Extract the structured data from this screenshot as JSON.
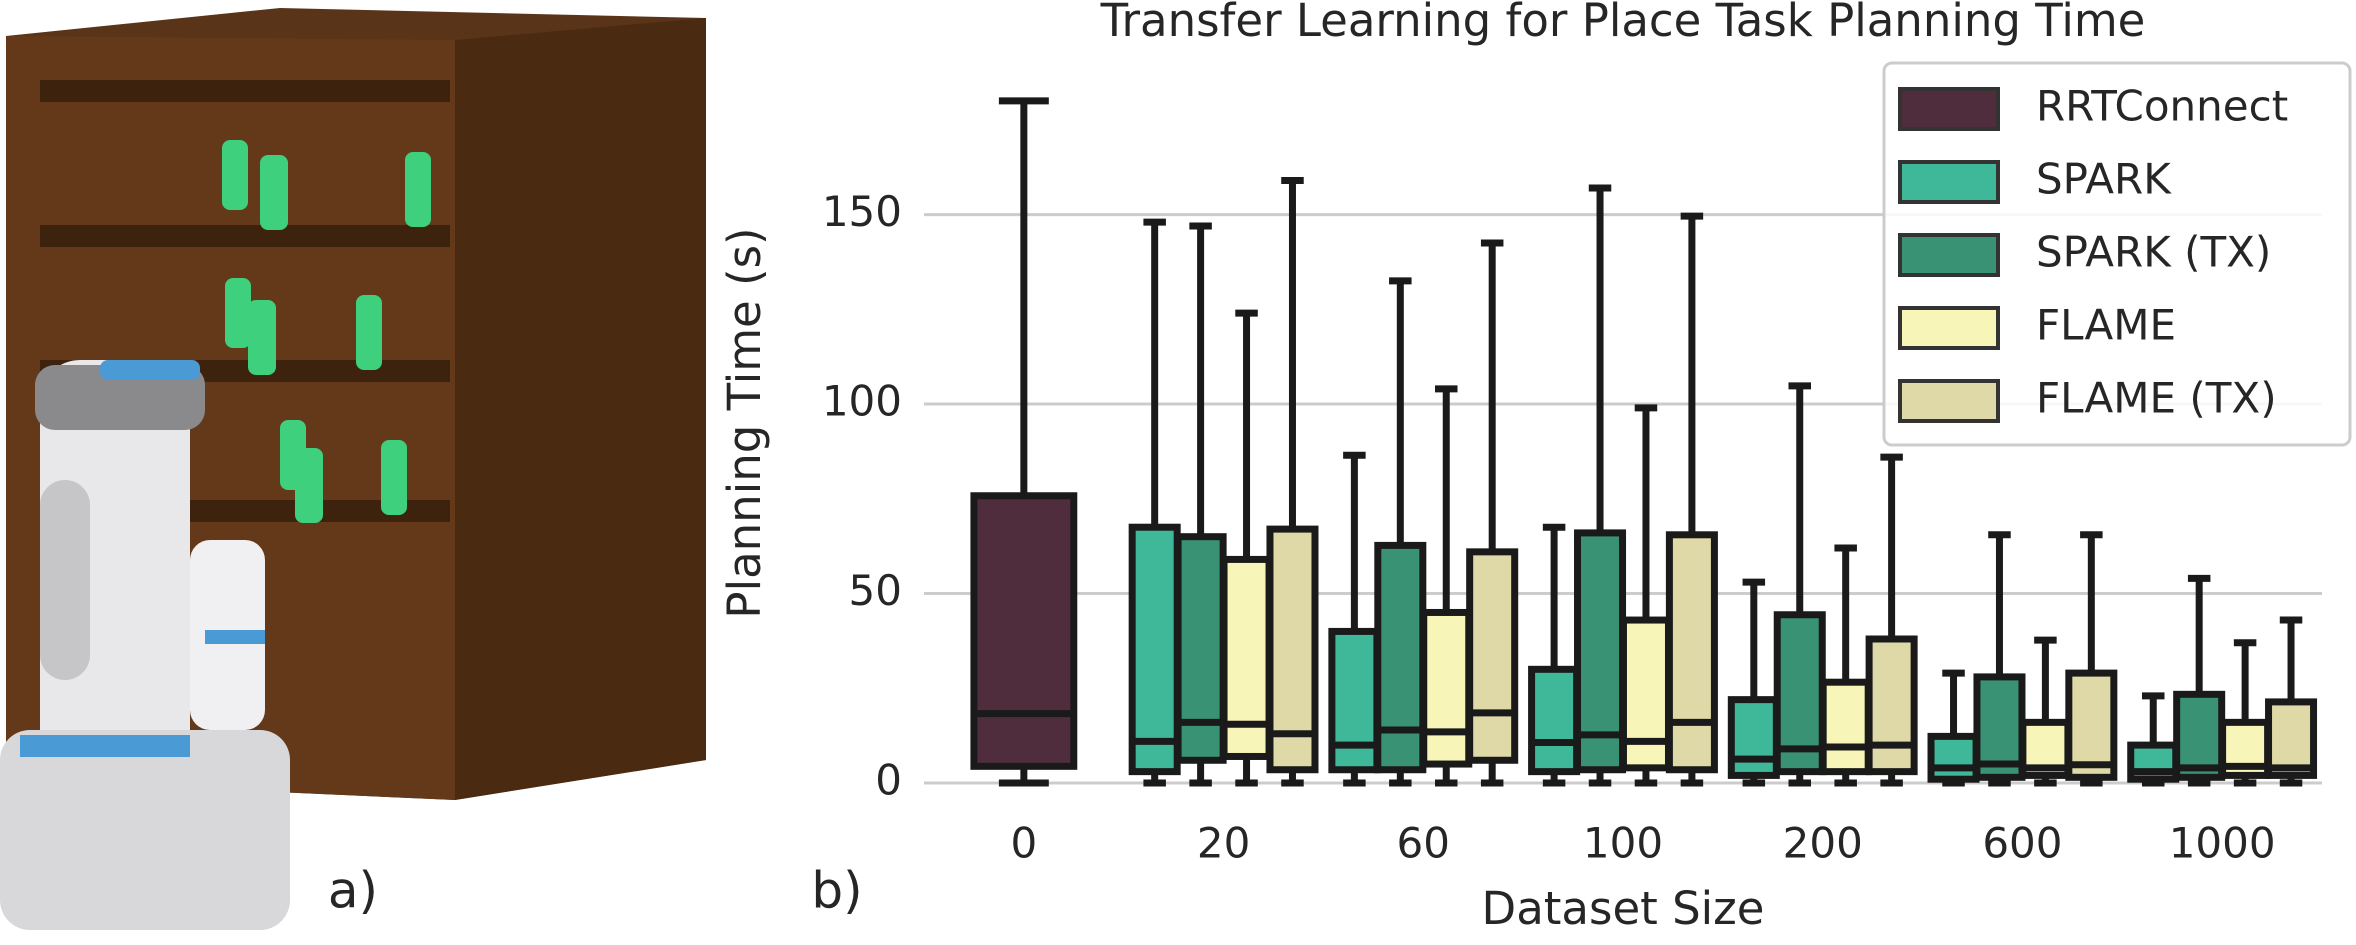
{
  "panel_labels": [
    "a)",
    "b)"
  ],
  "chart_data": {
    "type": "box",
    "title": "Transfer Learning for Place Task Planning Time",
    "x_label": "Dataset Size",
    "y_label": "Planning Time (s)",
    "categories": [
      "0",
      "20",
      "60",
      "100",
      "200",
      "600",
      "1000"
    ],
    "ylim": [
      0,
      190
    ],
    "yticks": [
      0,
      50,
      100,
      150
    ],
    "grid": true,
    "legend": "upper right",
    "series": [
      {
        "name": "RRTConnect",
        "color": "#4f2d3d",
        "values": [
          [
            0,
            4.4,
            18.3,
            75.8,
            180
          ],
          null,
          null,
          null,
          null,
          null,
          null
        ]
      },
      {
        "name": "SPARK",
        "color": "#3fb89a",
        "values": [
          null,
          [
            0,
            3,
            11,
            67.5,
            148
          ],
          [
            0,
            3.5,
            10,
            40,
            86.5
          ],
          [
            0,
            3,
            10.7,
            30,
            67.5
          ],
          [
            0,
            2,
            6.3,
            22,
            53
          ],
          [
            0,
            1,
            4,
            12.3,
            29
          ],
          [
            0,
            1,
            3,
            10,
            23
          ]
        ]
      },
      {
        "name": "SPARK (TX)",
        "color": "#3a9275",
        "values": [
          null,
          [
            0,
            6,
            16,
            65,
            147
          ],
          [
            0,
            3.5,
            14,
            62.7,
            132.5
          ],
          [
            0,
            3.5,
            12.7,
            66,
            157
          ],
          [
            0,
            3,
            9,
            44.4,
            104.8
          ],
          [
            0,
            1.5,
            5,
            28,
            65.5
          ],
          [
            0,
            1.5,
            4,
            23.4,
            54
          ]
        ]
      },
      {
        "name": "FLAME",
        "color": "#f7f5b8",
        "values": [
          null,
          [
            0,
            7,
            15.5,
            59,
            124
          ],
          [
            0,
            5,
            13.5,
            45,
            104
          ],
          [
            0,
            4,
            11,
            43,
            99
          ],
          [
            0,
            3,
            9.5,
            26.6,
            62
          ],
          [
            0,
            2,
            4,
            16,
            37.7
          ],
          [
            0,
            2,
            4.4,
            16,
            37
          ]
        ]
      },
      {
        "name": "FLAME (TX)",
        "color": "#ded9a6",
        "values": [
          null,
          [
            0,
            3.5,
            13,
            67,
            159
          ],
          [
            0,
            6,
            18.5,
            61,
            142.5
          ],
          [
            0,
            3.5,
            16,
            65.5,
            149.6
          ],
          [
            0,
            3,
            10,
            38,
            86
          ],
          [
            0,
            1.5,
            4.8,
            29,
            65.5
          ],
          [
            0,
            2,
            4,
            21.4,
            43
          ]
        ]
      }
    ]
  }
}
